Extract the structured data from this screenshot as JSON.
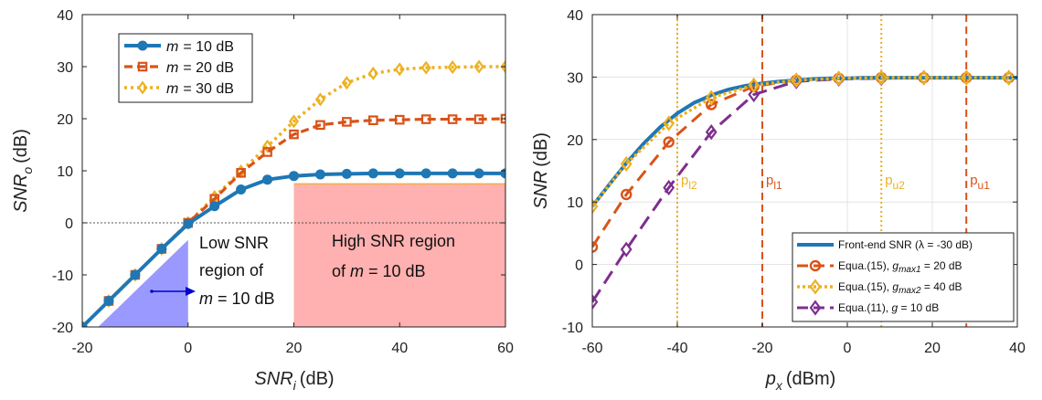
{
  "chart_data": [
    {
      "type": "line",
      "xlim": [
        -20,
        60
      ],
      "ylim": [
        -20,
        40
      ],
      "xticks": [
        "-20",
        "0",
        "20",
        "40",
        "60"
      ],
      "yticks": [
        "-20",
        "-10",
        "0",
        "10",
        "20",
        "30",
        "40"
      ],
      "xlabel": "SNR",
      "xlabel_sub": "i",
      "xlabel_unit": "(dB)",
      "ylabel": "SNR",
      "ylabel_sub": "o",
      "ylabel_unit": "(dB)",
      "grid": false,
      "legend_placement": "top-left",
      "x": [
        -20,
        -15,
        -10,
        -5,
        0,
        5,
        10,
        15,
        20,
        25,
        30,
        35,
        40,
        45,
        50,
        55,
        60
      ],
      "series": [
        {
          "name": "= 10 dB",
          "name_var": "m",
          "color": "#1f77b4",
          "marker": "circle",
          "values": [
            -20,
            -15,
            -10,
            -5,
            -0.2,
            3.2,
            6.4,
            8.3,
            9.0,
            9.3,
            9.4,
            9.5,
            9.5,
            9.5,
            9.5,
            9.5,
            9.5
          ]
        },
        {
          "name": "= 20 dB",
          "name_var": "m",
          "color": "#d95319",
          "marker": "square",
          "values": [
            -20,
            -15,
            -10,
            -5,
            0,
            4.6,
            9.6,
            13.6,
            17.0,
            18.8,
            19.4,
            19.7,
            19.8,
            19.9,
            19.9,
            19.9,
            20.0
          ]
        },
        {
          "name": "= 30 dB",
          "name_var": "m",
          "color": "#edb120",
          "marker": "diamond",
          "values": [
            -20,
            -15,
            -10,
            -5,
            0,
            5.0,
            9.9,
            14.7,
            19.5,
            23.7,
            26.9,
            28.7,
            29.5,
            29.8,
            29.9,
            30.0,
            30.0
          ]
        }
      ],
      "regions": {
        "low_line1": "Low SNR",
        "low_line2": "region of",
        "low_line3_rest": "= 10 dB",
        "low_var": "m",
        "low_color": "#9999ff",
        "high_line1": "High SNR region",
        "high_line2_prefix": "of",
        "high_line2_rest": "= 10 dB",
        "high_var": "m",
        "high_color": "#ffb0b0",
        "high_range_x": [
          20,
          60
        ],
        "high_top_y": 7.5
      }
    },
    {
      "type": "line",
      "xlim": [
        -60,
        40
      ],
      "ylim": [
        -10,
        40
      ],
      "xticks": [
        "-60",
        "-40",
        "-20",
        "0",
        "20",
        "40"
      ],
      "yticks": [
        "-10",
        "0",
        "10",
        "20",
        "30",
        "40"
      ],
      "xlabel": "p",
      "xlabel_sub": "x",
      "xlabel_unit": "(dBm)",
      "ylabel": "SNR",
      "ylabel_unit": "(dB)",
      "grid": true,
      "legend_placement": "bottom-right",
      "series": [
        {
          "name": "Front-end SNR (λ = -30 dB)",
          "color": "#1f77b4",
          "marker": "none",
          "x": [
            -60,
            -56,
            -52,
            -48,
            -44,
            -40,
            -36,
            -32,
            -28,
            -24,
            -20,
            -16,
            -12,
            -8,
            -4,
            0,
            4,
            8,
            12,
            16,
            20,
            24,
            28,
            32,
            36,
            40
          ],
          "values": [
            9.3,
            12.8,
            16.2,
            19.3,
            22.0,
            24.2,
            25.9,
            27.1,
            28.0,
            28.6,
            29.0,
            29.3,
            29.5,
            29.7,
            29.8,
            29.8,
            29.9,
            29.9,
            29.9,
            29.9,
            29.9,
            29.9,
            29.9,
            29.9,
            29.9,
            29.9
          ]
        },
        {
          "name_prefix": "Equa.(15), ",
          "name_var": "g",
          "name_sub": "max1",
          "name_rest": " = 20 dB",
          "color": "#d95319",
          "marker": "circle",
          "x": [
            -60,
            -52,
            -42,
            -32,
            -22,
            -12,
            -2,
            8,
            18,
            28,
            38
          ],
          "values": [
            2.8,
            11.2,
            19.6,
            25.6,
            28.5,
            29.5,
            29.8,
            29.9,
            29.9,
            29.9,
            29.9
          ]
        },
        {
          "name_prefix": "Equa.(15), ",
          "name_var": "g",
          "name_sub": "max2",
          "name_rest": " = 40 dB",
          "color": "#edb120",
          "marker": "diamond",
          "x": [
            -60,
            -52,
            -42,
            -32,
            -22,
            -12,
            -2,
            8,
            18,
            28,
            38
          ],
          "values": [
            9.3,
            16.1,
            22.6,
            26.7,
            28.7,
            29.5,
            29.8,
            29.9,
            29.9,
            29.9,
            29.9
          ]
        },
        {
          "name_prefix": "Equa.(11), ",
          "name_var": "g",
          "name_rest": " = 10 dB",
          "color": "#7e2f8e",
          "marker": "diamond",
          "x": [
            -60,
            -52,
            -42,
            -32,
            -22,
            -12,
            -2,
            8,
            18,
            28,
            38
          ],
          "values": [
            -6.0,
            2.4,
            12.3,
            21.2,
            27.2,
            29.3,
            29.7,
            29.8,
            29.9,
            29.9,
            29.9
          ]
        }
      ],
      "vlines": [
        {
          "label": "p",
          "label_sub": "l2",
          "x": -40,
          "color": "#edb120",
          "style": "dotted"
        },
        {
          "label": "p",
          "label_sub": "l1",
          "x": -20,
          "color": "#d95319",
          "style": "dashed"
        },
        {
          "label": "p",
          "label_sub": "u2",
          "x": 8,
          "color": "#edb120",
          "style": "dotted"
        },
        {
          "label": "p",
          "label_sub": "u1",
          "x": 28,
          "color": "#d95319",
          "style": "dashed"
        }
      ]
    }
  ]
}
